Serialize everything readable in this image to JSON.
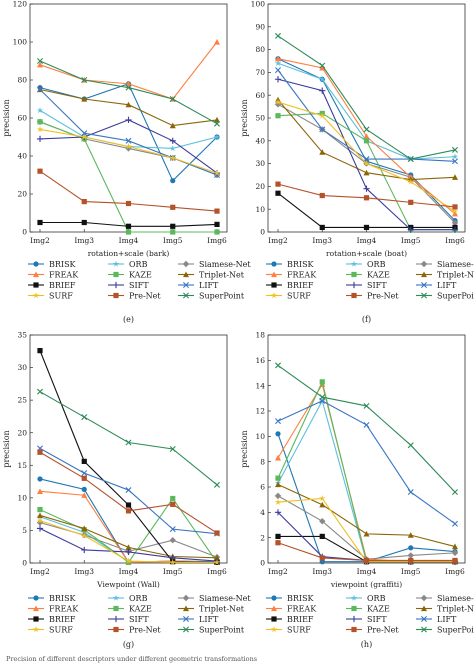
{
  "legend": [
    {
      "name": "BRISK",
      "color": "#1f77b4",
      "marker": "circle"
    },
    {
      "name": "ORB",
      "color": "#5bc0de",
      "marker": "star"
    },
    {
      "name": "Siamese-Net",
      "color": "#888888",
      "marker": "diamond"
    },
    {
      "name": "FREAK",
      "color": "#ff7f3f",
      "marker": "triangle"
    },
    {
      "name": "KAZE",
      "color": "#5cb85c",
      "marker": "square"
    },
    {
      "name": "Triplet-Net",
      "color": "#8b6508",
      "marker": "triangle"
    },
    {
      "name": "BRIEF",
      "color": "#111111",
      "marker": "square"
    },
    {
      "name": "SIFT",
      "color": "#3b3b9b",
      "marker": "plus"
    },
    {
      "name": "LIFT",
      "color": "#3a75c4",
      "marker": "x"
    },
    {
      "name": "SURF",
      "color": "#f0c020",
      "marker": "star"
    },
    {
      "name": "Pre-Net",
      "color": "#b5522a",
      "marker": "square"
    },
    {
      "name": "SuperPoint",
      "color": "#2e8b57",
      "marker": "x"
    }
  ],
  "caption": "Precision of different descriptors under different geometric transformations",
  "chart_data": [
    {
      "type": "line",
      "panel": "(e)",
      "xlabel": "rotation+scale (bark)",
      "ylabel": "precision",
      "categories": [
        "Img2",
        "Img3",
        "Img4",
        "Img5",
        "Img6"
      ],
      "ylim": [
        0,
        120
      ],
      "yticks": [
        0,
        20,
        40,
        60,
        80,
        100,
        120
      ],
      "series": [
        {
          "name": "BRISK",
          "values": [
            76,
            70,
            78,
            27,
            50
          ]
        },
        {
          "name": "ORB",
          "values": [
            64,
            50,
            45,
            44,
            50
          ]
        },
        {
          "name": "Siamese-Net",
          "values": [
            58,
            49,
            44,
            39,
            30
          ]
        },
        {
          "name": "FREAK",
          "values": [
            88,
            80,
            78,
            70,
            100
          ]
        },
        {
          "name": "KAZE",
          "values": [
            58,
            49,
            0,
            0,
            0
          ]
        },
        {
          "name": "Triplet-Net",
          "values": [
            75,
            70,
            67,
            56,
            59
          ]
        },
        {
          "name": "BRIEF",
          "values": [
            5,
            5,
            3,
            3,
            4
          ]
        },
        {
          "name": "SIFT",
          "values": [
            49,
            50,
            59,
            48,
            31
          ]
        },
        {
          "name": "LIFT",
          "values": [
            75,
            52,
            48,
            39,
            30
          ]
        },
        {
          "name": "SURF",
          "values": [
            54,
            50,
            45,
            39,
            31
          ]
        },
        {
          "name": "Pre-Net",
          "values": [
            32,
            16,
            15,
            13,
            11
          ]
        },
        {
          "name": "SuperPoint",
          "values": [
            90,
            80,
            76,
            70,
            57
          ]
        }
      ]
    },
    {
      "type": "line",
      "panel": "(f)",
      "xlabel": "rotation+scale (boat)",
      "ylabel": "precision",
      "categories": [
        "Img2",
        "Img3",
        "Img4",
        "Img5",
        "Img6"
      ],
      "ylim": [
        0,
        100
      ],
      "yticks": [
        0,
        10,
        20,
        30,
        40,
        50,
        60,
        70,
        80,
        90,
        100
      ],
      "series": [
        {
          "name": "BRISK",
          "values": [
            76,
            67,
            31,
            25,
            5
          ]
        },
        {
          "name": "ORB",
          "values": [
            74,
            67,
            40,
            32,
            33
          ]
        },
        {
          "name": "Siamese-Net",
          "values": [
            56,
            45,
            30,
            24,
            4
          ]
        },
        {
          "name": "FREAK",
          "values": [
            76,
            72,
            42,
            24,
            8
          ]
        },
        {
          "name": "KAZE",
          "values": [
            51,
            52,
            40,
            1,
            1
          ]
        },
        {
          "name": "Triplet-Net",
          "values": [
            58,
            35,
            26,
            23,
            24
          ]
        },
        {
          "name": "BRIEF",
          "values": [
            17,
            2,
            2,
            2,
            2
          ]
        },
        {
          "name": "SIFT",
          "values": [
            67,
            62,
            19,
            1,
            1
          ]
        },
        {
          "name": "LIFT",
          "values": [
            71,
            45,
            32,
            32,
            31
          ]
        },
        {
          "name": "SURF",
          "values": [
            57,
            51,
            30,
            22,
            9
          ]
        },
        {
          "name": "Pre-Net",
          "values": [
            21,
            16,
            15,
            13,
            11
          ]
        },
        {
          "name": "SuperPoint",
          "values": [
            86,
            73,
            45,
            32,
            36
          ]
        }
      ]
    },
    {
      "type": "line",
      "panel": "(g)",
      "xlabel": "Viewpoint (Wall)",
      "ylabel": "precision",
      "categories": [
        "Img2",
        "Img3",
        "Img4",
        "Img5",
        "Img6"
      ],
      "ylim": [
        0,
        35
      ],
      "yticks": [
        0,
        5,
        10,
        15,
        20,
        25,
        30,
        35
      ],
      "series": [
        {
          "name": "BRISK",
          "values": [
            12.9,
            11.3,
            0.1,
            0.3,
            0.2
          ]
        },
        {
          "name": "ORB",
          "values": [
            7.1,
            4.7,
            0.2,
            0.2,
            0.1
          ]
        },
        {
          "name": "Siamese-Net",
          "values": [
            6.2,
            4.3,
            1.8,
            3.5,
            0.9
          ]
        },
        {
          "name": "FREAK",
          "values": [
            11.0,
            10.4,
            0.1,
            0.3,
            0.1
          ]
        },
        {
          "name": "KAZE",
          "values": [
            8.2,
            5.1,
            0.1,
            9.9,
            0.1
          ]
        },
        {
          "name": "Triplet-Net",
          "values": [
            7.3,
            5.3,
            2.4,
            1.0,
            0.8
          ]
        },
        {
          "name": "BRIEF",
          "values": [
            32.6,
            15.6,
            8.9,
            0.2,
            0.1
          ]
        },
        {
          "name": "SIFT",
          "values": [
            5.3,
            2.0,
            1.7,
            0.8,
            0.3
          ]
        },
        {
          "name": "LIFT",
          "values": [
            17.6,
            13.8,
            11.2,
            5.2,
            4.5
          ]
        },
        {
          "name": "SURF",
          "values": [
            6.5,
            4.2,
            0.3,
            0.1,
            0.1
          ]
        },
        {
          "name": "Pre-Net",
          "values": [
            17.0,
            13.0,
            8.0,
            9.0,
            4.6
          ]
        },
        {
          "name": "SuperPoint",
          "values": [
            26.3,
            22.4,
            18.5,
            17.5,
            12.0
          ]
        }
      ]
    },
    {
      "type": "line",
      "panel": "(h)",
      "xlabel": "viewpoint (graffiti)",
      "ylabel": "precision",
      "categories": [
        "Img2",
        "Img3",
        "Img4",
        "Img5",
        "Img6"
      ],
      "ylim": [
        0,
        18
      ],
      "yticks": [
        0,
        2,
        4,
        6,
        8,
        10,
        12,
        14,
        16,
        18
      ],
      "series": [
        {
          "name": "BRISK",
          "values": [
            10.2,
            0.1,
            0.1,
            1.2,
            0.9
          ]
        },
        {
          "name": "ORB",
          "values": [
            6.3,
            12.8,
            0.1,
            0.1,
            0.1
          ]
        },
        {
          "name": "Siamese-Net",
          "values": [
            5.3,
            3.3,
            0.3,
            0.6,
            0.8
          ]
        },
        {
          "name": "FREAK",
          "values": [
            8.3,
            14.1,
            0.3,
            0.1,
            0.1
          ]
        },
        {
          "name": "KAZE",
          "values": [
            6.7,
            14.3,
            0.1,
            0.1,
            0.1
          ]
        },
        {
          "name": "Triplet-Net",
          "values": [
            6.2,
            4.6,
            2.3,
            2.2,
            1.3
          ]
        },
        {
          "name": "BRIEF",
          "values": [
            2.1,
            2.1,
            0.1,
            0.1,
            0.1
          ]
        },
        {
          "name": "SIFT",
          "values": [
            4.0,
            0.5,
            0.2,
            0.1,
            0.1
          ]
        },
        {
          "name": "LIFT",
          "values": [
            11.2,
            12.8,
            10.9,
            5.6,
            3.1
          ]
        },
        {
          "name": "SURF",
          "values": [
            4.8,
            5.1,
            0.1,
            0.1,
            0.1
          ]
        },
        {
          "name": "Pre-Net",
          "values": [
            1.6,
            0.4,
            0.2,
            0.2,
            0.2
          ]
        },
        {
          "name": "SuperPoint",
          "values": [
            15.6,
            13.1,
            12.4,
            9.3,
            5.6
          ]
        }
      ]
    }
  ]
}
